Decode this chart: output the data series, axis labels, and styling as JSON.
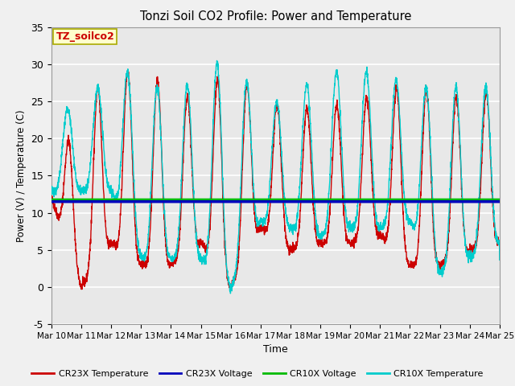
{
  "title": "Tonzi Soil CO2 Profile: Power and Temperature",
  "xlabel": "Time",
  "ylabel": "Power (V) / Temperature (C)",
  "ylim": [
    -5,
    35
  ],
  "yticks": [
    -5,
    0,
    5,
    10,
    15,
    20,
    25,
    30,
    35
  ],
  "xtick_labels": [
    "Mar 10",
    "Mar 11",
    "Mar 12",
    "Mar 13",
    "Mar 14",
    "Mar 15",
    "Mar 16",
    "Mar 17",
    "Mar 18",
    "Mar 19",
    "Mar 20",
    "Mar 21",
    "Mar 22",
    "Mar 23",
    "Mar 24",
    "Mar 25"
  ],
  "cr23x_voltage_level": 11.5,
  "cr10x_voltage_level": 11.75,
  "cr23x_color": "#cc0000",
  "cr10x_color": "#00cccc",
  "cr23x_voltage_color": "#0000bb",
  "cr10x_voltage_color": "#00bb00",
  "annotation_text": "TZ_soilco2",
  "annotation_bg": "#ffffcc",
  "annotation_border": "#aaaa00",
  "annotation_text_color": "#cc0000",
  "plot_bg_color": "#e8e8e8",
  "fig_bg_color": "#f0f0f0",
  "legend_entries": [
    "CR23X Temperature",
    "CR23X Voltage",
    "CR10X Voltage",
    "CR10X Temperature"
  ],
  "legend_colors": [
    "#cc0000",
    "#0000bb",
    "#00bb00",
    "#00cccc"
  ]
}
